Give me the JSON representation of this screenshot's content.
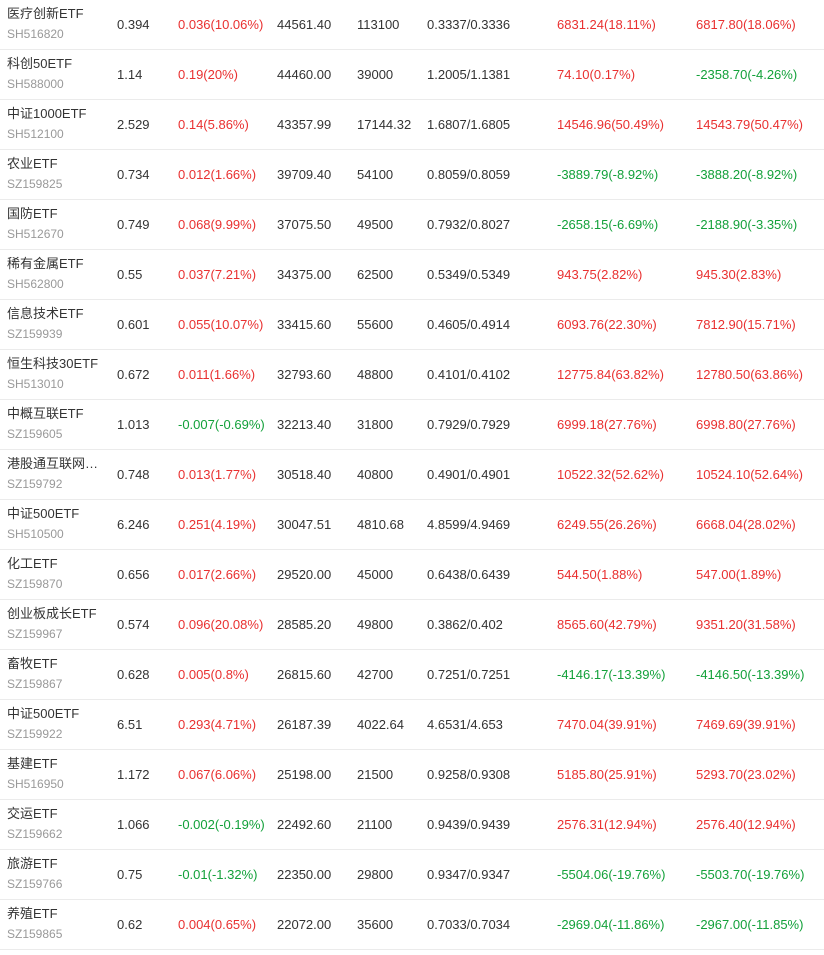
{
  "colors": {
    "up": "#e93030",
    "down": "#13a13a",
    "text": "#333333",
    "code": "#999999"
  },
  "rows": [
    {
      "name": "医疗创新ETF",
      "code": "SH516820",
      "price": "0.394",
      "change": "0.036(10.06%)",
      "change_dir": "up",
      "c1": "44561.40",
      "c2": "113100",
      "c3": "0.3337/0.3336",
      "v1": "6831.24(18.11%)",
      "v1_dir": "up",
      "v2": "6817.80(18.06%)",
      "v2_dir": "up"
    },
    {
      "name": "科创50ETF",
      "code": "SH588000",
      "price": "1.14",
      "change": "0.19(20%)",
      "change_dir": "up",
      "c1": "44460.00",
      "c2": "39000",
      "c3": "1.2005/1.1381",
      "v1": "74.10(0.17%)",
      "v1_dir": "up",
      "v2": "-2358.70(-4.26%)",
      "v2_dir": "down"
    },
    {
      "name": "中证1000ETF",
      "code": "SH512100",
      "price": "2.529",
      "change": "0.14(5.86%)",
      "change_dir": "up",
      "c1": "43357.99",
      "c2": "17144.32",
      "c3": "1.6807/1.6805",
      "v1": "14546.96(50.49%)",
      "v1_dir": "up",
      "v2": "14543.79(50.47%)",
      "v2_dir": "up"
    },
    {
      "name": "农业ETF",
      "code": "SZ159825",
      "price": "0.734",
      "change": "0.012(1.66%)",
      "change_dir": "up",
      "c1": "39709.40",
      "c2": "54100",
      "c3": "0.8059/0.8059",
      "v1": "-3889.79(-8.92%)",
      "v1_dir": "down",
      "v2": "-3888.20(-8.92%)",
      "v2_dir": "down"
    },
    {
      "name": "国防ETF",
      "code": "SH512670",
      "price": "0.749",
      "change": "0.068(9.99%)",
      "change_dir": "up",
      "c1": "37075.50",
      "c2": "49500",
      "c3": "0.7932/0.8027",
      "v1": "-2658.15(-6.69%)",
      "v1_dir": "down",
      "v2": "-2188.90(-3.35%)",
      "v2_dir": "down"
    },
    {
      "name": "稀有金属ETF",
      "code": "SH562800",
      "price": "0.55",
      "change": "0.037(7.21%)",
      "change_dir": "up",
      "c1": "34375.00",
      "c2": "62500",
      "c3": "0.5349/0.5349",
      "v1": "943.75(2.82%)",
      "v1_dir": "up",
      "v2": "945.30(2.83%)",
      "v2_dir": "up"
    },
    {
      "name": "信息技术ETF",
      "code": "SZ159939",
      "price": "0.601",
      "change": "0.055(10.07%)",
      "change_dir": "up",
      "c1": "33415.60",
      "c2": "55600",
      "c3": "0.4605/0.4914",
      "v1": "6093.76(22.30%)",
      "v1_dir": "up",
      "v2": "7812.90(15.71%)",
      "v2_dir": "up"
    },
    {
      "name": "恒生科技30ETF",
      "code": "SH513010",
      "price": "0.672",
      "change": "0.011(1.66%)",
      "change_dir": "up",
      "c1": "32793.60",
      "c2": "48800",
      "c3": "0.4101/0.4102",
      "v1": "12775.84(63.82%)",
      "v1_dir": "up",
      "v2": "12780.50(63.86%)",
      "v2_dir": "up"
    },
    {
      "name": "中概互联ETF",
      "code": "SZ159605",
      "price": "1.013",
      "change": "-0.007(-0.69%)",
      "change_dir": "down",
      "c1": "32213.40",
      "c2": "31800",
      "c3": "0.7929/0.7929",
      "v1": "6999.18(27.76%)",
      "v1_dir": "up",
      "v2": "6998.80(27.76%)",
      "v2_dir": "up"
    },
    {
      "name": "港股通互联网…",
      "code": "SZ159792",
      "price": "0.748",
      "change": "0.013(1.77%)",
      "change_dir": "up",
      "c1": "30518.40",
      "c2": "40800",
      "c3": "0.4901/0.4901",
      "v1": "10522.32(52.62%)",
      "v1_dir": "up",
      "v2": "10524.10(52.64%)",
      "v2_dir": "up"
    },
    {
      "name": "中证500ETF",
      "code": "SH510500",
      "price": "6.246",
      "change": "0.251(4.19%)",
      "change_dir": "up",
      "c1": "30047.51",
      "c2": "4810.68",
      "c3": "4.8599/4.9469",
      "v1": "6249.55(26.26%)",
      "v1_dir": "up",
      "v2": "6668.04(28.02%)",
      "v2_dir": "up"
    },
    {
      "name": "化工ETF",
      "code": "SZ159870",
      "price": "0.656",
      "change": "0.017(2.66%)",
      "change_dir": "up",
      "c1": "29520.00",
      "c2": "45000",
      "c3": "0.6438/0.6439",
      "v1": "544.50(1.88%)",
      "v1_dir": "up",
      "v2": "547.00(1.89%)",
      "v2_dir": "up"
    },
    {
      "name": "创业板成长ETF",
      "code": "SZ159967",
      "price": "0.574",
      "change": "0.096(20.08%)",
      "change_dir": "up",
      "c1": "28585.20",
      "c2": "49800",
      "c3": "0.3862/0.402",
      "v1": "8565.60(42.79%)",
      "v1_dir": "up",
      "v2": "9351.20(31.58%)",
      "v2_dir": "up"
    },
    {
      "name": "畜牧ETF",
      "code": "SZ159867",
      "price": "0.628",
      "change": "0.005(0.8%)",
      "change_dir": "up",
      "c1": "26815.60",
      "c2": "42700",
      "c3": "0.7251/0.7251",
      "v1": "-4146.17(-13.39%)",
      "v1_dir": "down",
      "v2": "-4146.50(-13.39%)",
      "v2_dir": "down"
    },
    {
      "name": "中证500ETF",
      "code": "SZ159922",
      "price": "6.51",
      "change": "0.293(4.71%)",
      "change_dir": "up",
      "c1": "26187.39",
      "c2": "4022.64",
      "c3": "4.6531/4.653",
      "v1": "7470.04(39.91%)",
      "v1_dir": "up",
      "v2": "7469.69(39.91%)",
      "v2_dir": "up"
    },
    {
      "name": "基建ETF",
      "code": "SH516950",
      "price": "1.172",
      "change": "0.067(6.06%)",
      "change_dir": "up",
      "c1": "25198.00",
      "c2": "21500",
      "c3": "0.9258/0.9308",
      "v1": "5185.80(25.91%)",
      "v1_dir": "up",
      "v2": "5293.70(23.02%)",
      "v2_dir": "up"
    },
    {
      "name": "交运ETF",
      "code": "SZ159662",
      "price": "1.066",
      "change": "-0.002(-0.19%)",
      "change_dir": "down",
      "c1": "22492.60",
      "c2": "21100",
      "c3": "0.9439/0.9439",
      "v1": "2576.31(12.94%)",
      "v1_dir": "up",
      "v2": "2576.40(12.94%)",
      "v2_dir": "up"
    },
    {
      "name": "旅游ETF",
      "code": "SZ159766",
      "price": "0.75",
      "change": "-0.01(-1.32%)",
      "change_dir": "down",
      "c1": "22350.00",
      "c2": "29800",
      "c3": "0.9347/0.9347",
      "v1": "-5504.06(-19.76%)",
      "v1_dir": "down",
      "v2": "-5503.70(-19.76%)",
      "v2_dir": "down"
    },
    {
      "name": "养殖ETF",
      "code": "SZ159865",
      "price": "0.62",
      "change": "0.004(0.65%)",
      "change_dir": "up",
      "c1": "22072.00",
      "c2": "35600",
      "c3": "0.7033/0.7034",
      "v1": "-2969.04(-11.86%)",
      "v1_dir": "down",
      "v2": "-2967.00(-11.85%)",
      "v2_dir": "down"
    }
  ]
}
